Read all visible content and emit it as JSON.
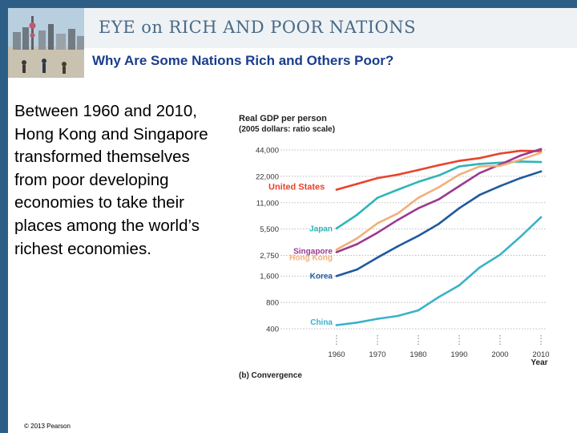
{
  "header": {
    "title": "EYE on RICH AND POOR NATIONS",
    "subtitle": "Why Are Some Nations Rich and Others Poor?"
  },
  "body": {
    "text": "Between 1960 and 2010, Hong Kong and Singapore transformed themselves from poor developing economies to take their places among the world’s richest economies."
  },
  "footer": {
    "copyright": "© 2013 Pearson"
  },
  "colors": {
    "band": "#2d5f86",
    "banner_bg": "#eef2f5",
    "subtitle": "#1a3d8c",
    "united_states": "#e8432b",
    "japan": "#2fb5b8",
    "singapore": "#9a3a8f",
    "hong_kong": "#f2b07a",
    "korea": "#1f5a9e",
    "china": "#3bb2c8"
  },
  "chart_data": {
    "type": "line",
    "title": "Real GDP per person",
    "subtitle": "(2005 dollars: ratio scale)",
    "xlabel": "Year",
    "caption": "(b) Convergence",
    "scale": "log",
    "ylim": [
      400,
      44000
    ],
    "xlim": [
      1960,
      2010
    ],
    "yticks": [
      44000,
      22000,
      11000,
      5500,
      2750,
      1600,
      800,
      400
    ],
    "ytick_labels": [
      "44,000",
      "22,000",
      "11,000",
      "5,500",
      "2,750",
      "1,600",
      "800",
      "400"
    ],
    "xticks": [
      1960,
      1970,
      1980,
      1990,
      2000,
      2010
    ],
    "x": [
      1960,
      1965,
      1970,
      1975,
      1980,
      1985,
      1990,
      1995,
      2000,
      2005,
      2010
    ],
    "series": [
      {
        "name": "United States",
        "label": "United States",
        "color": "#e8432b",
        "values": [
          15500,
          18000,
          21000,
          23000,
          26000,
          29500,
          33000,
          35500,
          40000,
          43000,
          42500
        ]
      },
      {
        "name": "Japan",
        "label": "Japan",
        "color": "#2fb5b8",
        "values": [
          5600,
          8000,
          12500,
          15500,
          19000,
          22500,
          28500,
          30500,
          31500,
          32500,
          32000
        ]
      },
      {
        "name": "Singapore",
        "label": "Singapore",
        "color": "#9a3a8f",
        "values": [
          3000,
          3700,
          5000,
          7000,
          9500,
          12000,
          17000,
          24000,
          30000,
          38000,
          45000
        ]
      },
      {
        "name": "Hong Kong",
        "label": "Hong Kong",
        "color": "#f2b07a",
        "values": [
          3200,
          4300,
          6400,
          8300,
          12500,
          16500,
          23000,
          28500,
          29000,
          34000,
          41000
        ]
      },
      {
        "name": "Korea",
        "label": "Korea",
        "color": "#1f5a9e",
        "values": [
          1600,
          1900,
          2600,
          3500,
          4600,
          6300,
          9500,
          13500,
          17000,
          21000,
          25000
        ]
      },
      {
        "name": "China",
        "label": "China",
        "color": "#3bb2c8",
        "values": [
          440,
          470,
          520,
          560,
          650,
          920,
          1250,
          2000,
          2800,
          4500,
          7500
        ]
      }
    ]
  }
}
